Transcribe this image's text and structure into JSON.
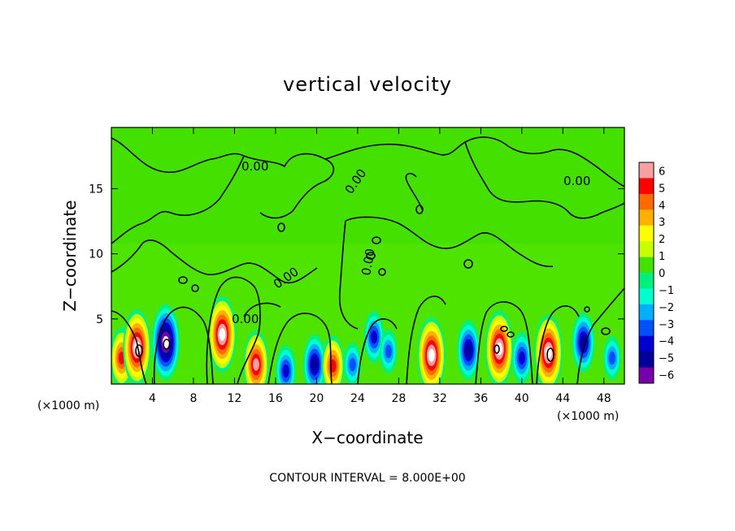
{
  "chart_data": {
    "type": "heatmap",
    "title": "vertical velocity",
    "xlabel": "X−coordinate",
    "ylabel": "Z−coordinate",
    "x_unit_label": "(×1000 m)",
    "y_unit_label": "(×1000 m)",
    "xlim": [
      0,
      50
    ],
    "ylim": [
      0,
      19.7
    ],
    "x_ticks": [
      4,
      8,
      12,
      16,
      20,
      24,
      28,
      32,
      36,
      40,
      44,
      48
    ],
    "y_ticks": [
      5,
      10,
      15
    ],
    "colorbar": {
      "min": -6,
      "max": 6,
      "ticks": [
        "6",
        "5",
        "4",
        "3",
        "2",
        "1",
        "0",
        "−1",
        "−2",
        "−3",
        "−4",
        "−5",
        "−6"
      ],
      "colors": [
        "#f8a0a0",
        "#ff0000",
        "#ff6a00",
        "#ffb000",
        "#ffff00",
        "#c8ff00",
        "#44e000",
        "#00f080",
        "#00ffd0",
        "#00b0ff",
        "#0050ff",
        "#0000d0",
        "#00009a",
        "#7700aa"
      ]
    },
    "contour_interval_text": "CONTOUR INTERVAL = 8.000E+00",
    "contour_labels": [
      "0.00",
      "0.00",
      "0.00",
      "0.00",
      "0.00",
      "0.00"
    ],
    "background_value": 0,
    "cells": [
      {
        "x": 1.0,
        "z": 2.0,
        "value": 5.0
      },
      {
        "x": 2.5,
        "z": 2.8,
        "value": 8.0
      },
      {
        "x": 5.3,
        "z": 3.2,
        "value": -7.0
      },
      {
        "x": 10.8,
        "z": 3.8,
        "value": 8.0
      },
      {
        "x": 14.1,
        "z": 1.5,
        "value": 6.0
      },
      {
        "x": 17.0,
        "z": 1.0,
        "value": -4.0
      },
      {
        "x": 19.8,
        "z": 1.5,
        "value": -5.0
      },
      {
        "x": 21.6,
        "z": 1.4,
        "value": 5.0
      },
      {
        "x": 23.5,
        "z": 1.5,
        "value": -3.0
      },
      {
        "x": 25.6,
        "z": 3.6,
        "value": -4.0
      },
      {
        "x": 27.0,
        "z": 2.5,
        "value": -3.0
      },
      {
        "x": 31.2,
        "z": 2.2,
        "value": 8.0
      },
      {
        "x": 34.8,
        "z": 2.6,
        "value": -5.0
      },
      {
        "x": 37.8,
        "z": 2.7,
        "value": 8.0
      },
      {
        "x": 40.0,
        "z": 2.0,
        "value": -4.0
      },
      {
        "x": 42.6,
        "z": 2.4,
        "value": 8.0
      },
      {
        "x": 46.0,
        "z": 3.2,
        "value": -5.0
      },
      {
        "x": 48.8,
        "z": 2.0,
        "value": -3.0
      }
    ]
  }
}
